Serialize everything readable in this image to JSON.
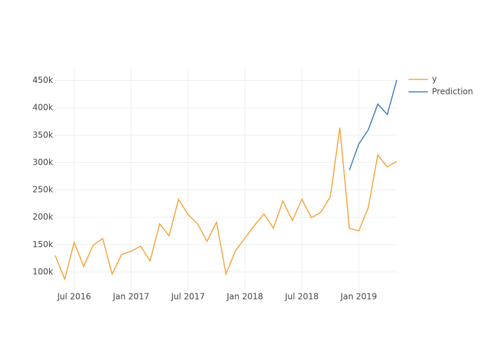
{
  "chart_data": {
    "type": "line",
    "x": [
      "2016-05",
      "2016-06",
      "2016-07",
      "2016-08",
      "2016-09",
      "2016-10",
      "2016-11",
      "2016-12",
      "2017-01",
      "2017-02",
      "2017-03",
      "2017-04",
      "2017-05",
      "2017-06",
      "2017-07",
      "2017-08",
      "2017-09",
      "2017-10",
      "2017-11",
      "2017-12",
      "2018-01",
      "2018-02",
      "2018-03",
      "2018-04",
      "2018-05",
      "2018-06",
      "2018-07",
      "2018-08",
      "2018-09",
      "2018-10",
      "2018-11",
      "2018-12",
      "2019-01",
      "2019-02",
      "2019-03",
      "2019-04",
      "2019-05"
    ],
    "series": [
      {
        "name": "y",
        "color": "#f7a035",
        "values": [
          130000,
          87000,
          154000,
          110000,
          149000,
          161000,
          96000,
          132000,
          138000,
          147000,
          120000,
          188000,
          166000,
          233000,
          205000,
          188000,
          156000,
          191000,
          96000,
          139000,
          162000,
          185000,
          206000,
          180000,
          230000,
          194000,
          233000,
          199000,
          209000,
          238000,
          364000,
          180000,
          175000,
          218000,
          314000,
          292000,
          302000
        ]
      },
      {
        "name": "Prediction",
        "color": "#3d7ab5",
        "values": [
          null,
          null,
          null,
          null,
          null,
          null,
          null,
          null,
          null,
          null,
          null,
          null,
          null,
          null,
          null,
          null,
          null,
          null,
          null,
          null,
          null,
          null,
          null,
          null,
          null,
          null,
          null,
          null,
          null,
          null,
          null,
          286000,
          334000,
          360000,
          407000,
          388000,
          451000
        ]
      }
    ],
    "xlim": [
      "2016-05",
      "2019-05"
    ],
    "xticks": [
      {
        "value": "2016-07",
        "label": "Jul 2016"
      },
      {
        "value": "2017-01",
        "label": "Jan 2017"
      },
      {
        "value": "2017-07",
        "label": "Jul 2017"
      },
      {
        "value": "2018-01",
        "label": "Jan 2018"
      },
      {
        "value": "2018-07",
        "label": "Jul 2018"
      },
      {
        "value": "2019-01",
        "label": "Jan 2019"
      }
    ],
    "ylim": [
      67000,
      471000
    ],
    "yticks": [
      {
        "value": 100000,
        "label": "100k"
      },
      {
        "value": 150000,
        "label": "150k"
      },
      {
        "value": 200000,
        "label": "200k"
      },
      {
        "value": 250000,
        "label": "250k"
      },
      {
        "value": 300000,
        "label": "300k"
      },
      {
        "value": 350000,
        "label": "350k"
      },
      {
        "value": 400000,
        "label": "400k"
      },
      {
        "value": 450000,
        "label": "450k"
      }
    ],
    "grid": true,
    "legend": "top-right"
  }
}
